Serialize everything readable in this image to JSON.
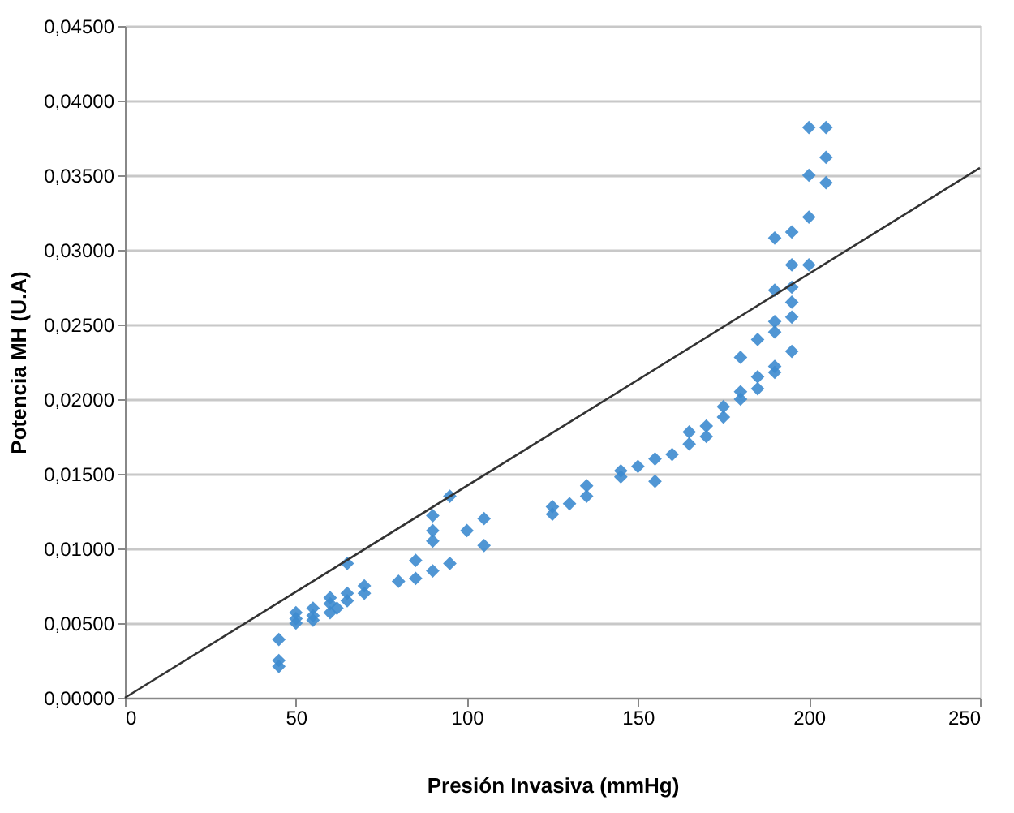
{
  "chart_data": {
    "type": "scatter",
    "xlabel": "Presión Invasiva (mmHg)",
    "ylabel": "Potencia MH (U.A)",
    "xlim": [
      0,
      250
    ],
    "xticks": [
      0,
      50,
      100,
      150,
      200,
      250
    ],
    "ylim": [
      0,
      0.045
    ],
    "yticks": [
      {
        "value": 0,
        "label": "0,00000"
      },
      {
        "value": 0.005,
        "label": "0,00500"
      },
      {
        "value": 0.01,
        "label": "0,01000"
      },
      {
        "value": 0.015,
        "label": "0,01500"
      },
      {
        "value": 0.02,
        "label": "0,02000"
      },
      {
        "value": 0.025,
        "label": "0,02500"
      },
      {
        "value": 0.03,
        "label": "0,03000"
      },
      {
        "value": 0.035,
        "label": "0,03500"
      },
      {
        "value": 0.04,
        "label": "0,04000"
      },
      {
        "value": 0.045,
        "label": "0,04500"
      }
    ],
    "grid": "y",
    "series": [
      {
        "type": "scatter",
        "color": "#3d8bcf",
        "marker": "diamond",
        "x": [
          45,
          45,
          45,
          50,
          50,
          50,
          55,
          55,
          55,
          60,
          60,
          60,
          62,
          65,
          65,
          65,
          70,
          70,
          80,
          85,
          85,
          90,
          90,
          90,
          90,
          95,
          95,
          100,
          105,
          105,
          125,
          125,
          130,
          135,
          135,
          145,
          145,
          150,
          155,
          155,
          160,
          165,
          165,
          170,
          170,
          175,
          175,
          180,
          180,
          180,
          185,
          185,
          185,
          190,
          190,
          190,
          190,
          190,
          190,
          195,
          195,
          195,
          195,
          195,
          195,
          200,
          200,
          200,
          200,
          205,
          205,
          205
        ],
        "values": [
          0.0039,
          0.0025,
          0.0021,
          0.005,
          0.0057,
          0.0053,
          0.0055,
          0.006,
          0.0052,
          0.0057,
          0.0063,
          0.0067,
          0.006,
          0.0065,
          0.007,
          0.009,
          0.0075,
          0.007,
          0.0078,
          0.008,
          0.0092,
          0.0085,
          0.0105,
          0.0112,
          0.0122,
          0.0135,
          0.009,
          0.0112,
          0.012,
          0.0102,
          0.0123,
          0.0128,
          0.013,
          0.0135,
          0.0142,
          0.0148,
          0.0152,
          0.0155,
          0.016,
          0.0145,
          0.0163,
          0.017,
          0.0178,
          0.0175,
          0.0182,
          0.0188,
          0.0195,
          0.02,
          0.0205,
          0.0228,
          0.0207,
          0.0215,
          0.024,
          0.0218,
          0.0222,
          0.0245,
          0.0252,
          0.0273,
          0.0308,
          0.0232,
          0.0255,
          0.0265,
          0.0275,
          0.029,
          0.0312,
          0.029,
          0.0322,
          0.035,
          0.0382,
          0.0345,
          0.0362,
          0.0382
        ]
      },
      {
        "type": "line",
        "color": "#333333",
        "marker": "none",
        "line_style": "solid",
        "x": [
          0,
          250
        ],
        "values": [
          0,
          0.0355
        ]
      }
    ]
  }
}
